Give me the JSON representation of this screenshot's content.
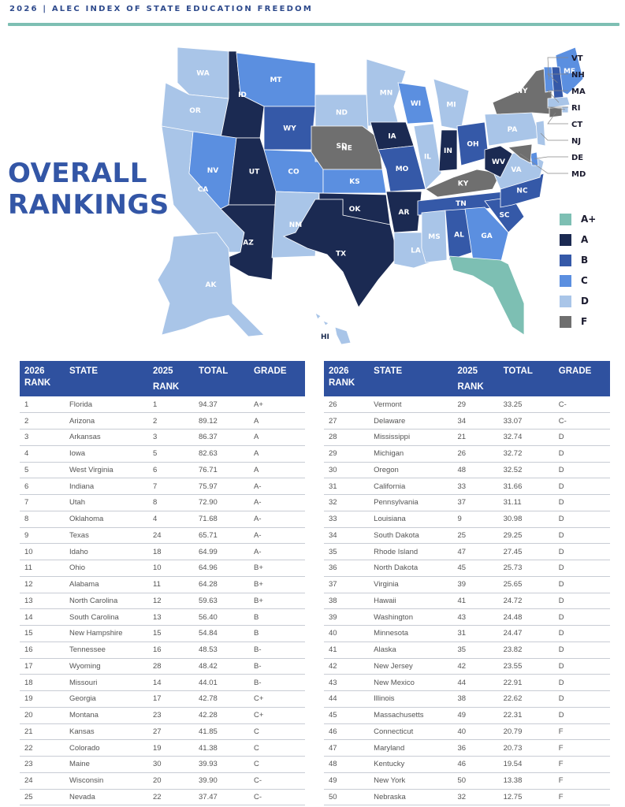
{
  "header": {
    "title": "2026 | ALEC INDEX OF STATE EDUCATION FREEDOM"
  },
  "page_title": {
    "line1": "OVERALL",
    "line2": "RANKINGS"
  },
  "colors": {
    "A+": "#7dbfb3",
    "A": "#1b2a52",
    "B": "#3559a8",
    "C": "#5b8fe0",
    "D": "#a9c5e8",
    "F": "#6f6f6f",
    "header_blue": "#2f519f",
    "accent_teal": "#7dbfb3"
  },
  "legend": [
    {
      "grade": "A+",
      "label": "A+"
    },
    {
      "grade": "A",
      "label": "A"
    },
    {
      "grade": "B",
      "label": "B"
    },
    {
      "grade": "C",
      "label": "C"
    },
    {
      "grade": "D",
      "label": "D"
    },
    {
      "grade": "F",
      "label": "F"
    }
  ],
  "map": {
    "states": {
      "WA": "D",
      "OR": "D",
      "CA": "D",
      "ID": "A",
      "NV": "C",
      "UT": "A",
      "AZ": "A",
      "MT": "C",
      "WY": "B",
      "CO": "C",
      "NM": "D",
      "ND": "D",
      "SD": "D",
      "NE": "F",
      "KS": "C",
      "OK": "A",
      "TX": "A",
      "MN": "D",
      "IA": "A",
      "MO": "B",
      "AR": "A",
      "LA": "D",
      "WI": "C",
      "IL": "D",
      "MI": "D",
      "IN": "A",
      "OH": "B",
      "KY": "F",
      "TN": "B",
      "MS": "D",
      "AL": "B",
      "GA": "C",
      "FL": "A+",
      "SC": "B",
      "NC": "B",
      "VA": "D",
      "WV": "A",
      "PA": "D",
      "NY": "F",
      "ME": "C",
      "VT": "C",
      "NH": "B",
      "MA": "D",
      "RI": "D",
      "CT": "F",
      "NJ": "D",
      "DE": "C",
      "MD": "F",
      "AK": "D",
      "HI": "D"
    },
    "callouts": [
      "VT",
      "NH",
      "MA",
      "RI",
      "CT",
      "NJ",
      "DE",
      "MD"
    ]
  },
  "table": {
    "headers": {
      "rank_2026_line1": "2026",
      "rank_2026_line2": "RANK",
      "state": "STATE",
      "rank_2025_line1": "2025",
      "rank_2025_line2": "RANK",
      "total": "TOTAL",
      "grade": "GRADE"
    },
    "rows": [
      {
        "rank": "1",
        "state": "Florida",
        "prev": "1",
        "total": "94.37",
        "grade": "A+"
      },
      {
        "rank": "2",
        "state": "Arizona",
        "prev": "2",
        "total": "89.12",
        "grade": "A"
      },
      {
        "rank": "3",
        "state": "Arkansas",
        "prev": "3",
        "total": "86.37",
        "grade": "A"
      },
      {
        "rank": "4",
        "state": "Iowa",
        "prev": "5",
        "total": "82.63",
        "grade": "A"
      },
      {
        "rank": "5",
        "state": "West Virginia",
        "prev": "6",
        "total": "76.71",
        "grade": "A"
      },
      {
        "rank": "6",
        "state": "Indiana",
        "prev": "7",
        "total": "75.97",
        "grade": "A-"
      },
      {
        "rank": "7",
        "state": "Utah",
        "prev": "8",
        "total": "72.90",
        "grade": "A-"
      },
      {
        "rank": "8",
        "state": "Oklahoma",
        "prev": "4",
        "total": "71.68",
        "grade": "A-"
      },
      {
        "rank": "9",
        "state": "Texas",
        "prev": "24",
        "total": "65.71",
        "grade": "A-"
      },
      {
        "rank": "10",
        "state": "Idaho",
        "prev": "18",
        "total": "64.99",
        "grade": "A-"
      },
      {
        "rank": "11",
        "state": "Ohio",
        "prev": "10",
        "total": "64.96",
        "grade": "B+"
      },
      {
        "rank": "12",
        "state": "Alabama",
        "prev": "11",
        "total": "64.28",
        "grade": "B+"
      },
      {
        "rank": "13",
        "state": "North Carolina",
        "prev": "12",
        "total": "59.63",
        "grade": "B+"
      },
      {
        "rank": "14",
        "state": "South Carolina",
        "prev": "13",
        "total": "56.40",
        "grade": "B"
      },
      {
        "rank": "15",
        "state": "New Hampshire",
        "prev": "15",
        "total": "54.84",
        "grade": "B"
      },
      {
        "rank": "16",
        "state": "Tennessee",
        "prev": "16",
        "total": "48.53",
        "grade": "B-"
      },
      {
        "rank": "17",
        "state": "Wyoming",
        "prev": "28",
        "total": "48.42",
        "grade": "B-"
      },
      {
        "rank": "18",
        "state": "Missouri",
        "prev": "14",
        "total": "44.01",
        "grade": "B-"
      },
      {
        "rank": "19",
        "state": "Georgia",
        "prev": "17",
        "total": "42.78",
        "grade": "C+"
      },
      {
        "rank": "20",
        "state": "Montana",
        "prev": "23",
        "total": "42.28",
        "grade": "C+"
      },
      {
        "rank": "21",
        "state": "Kansas",
        "prev": "27",
        "total": "41.85",
        "grade": "C"
      },
      {
        "rank": "22",
        "state": "Colorado",
        "prev": "19",
        "total": "41.38",
        "grade": "C"
      },
      {
        "rank": "23",
        "state": "Maine",
        "prev": "30",
        "total": "39.93",
        "grade": "C"
      },
      {
        "rank": "24",
        "state": "Wisconsin",
        "prev": "20",
        "total": "39.90",
        "grade": "C-"
      },
      {
        "rank": "25",
        "state": "Nevada",
        "prev": "22",
        "total": "37.47",
        "grade": "C-"
      },
      {
        "rank": "26",
        "state": "Vermont",
        "prev": "29",
        "total": "33.25",
        "grade": "C-"
      },
      {
        "rank": "27",
        "state": "Delaware",
        "prev": "34",
        "total": "33.07",
        "grade": "C-"
      },
      {
        "rank": "28",
        "state": "Mississippi",
        "prev": "21",
        "total": "32.74",
        "grade": "D"
      },
      {
        "rank": "29",
        "state": "Michigan",
        "prev": "26",
        "total": "32.72",
        "grade": "D"
      },
      {
        "rank": "30",
        "state": "Oregon",
        "prev": "48",
        "total": "32.52",
        "grade": "D"
      },
      {
        "rank": "31",
        "state": "California",
        "prev": "33",
        "total": "31.66",
        "grade": "D"
      },
      {
        "rank": "32",
        "state": "Pennsylvania",
        "prev": "37",
        "total": "31.11",
        "grade": "D"
      },
      {
        "rank": "33",
        "state": "Louisiana",
        "prev": "9",
        "total": "30.98",
        "grade": "D"
      },
      {
        "rank": "34",
        "state": "South Dakota",
        "prev": "25",
        "total": "29.25",
        "grade": "D"
      },
      {
        "rank": "35",
        "state": "Rhode Island",
        "prev": "47",
        "total": "27.45",
        "grade": "D"
      },
      {
        "rank": "36",
        "state": "North Dakota",
        "prev": "45",
        "total": "25.73",
        "grade": "D"
      },
      {
        "rank": "37",
        "state": "Virginia",
        "prev": "39",
        "total": "25.65",
        "grade": "D"
      },
      {
        "rank": "38",
        "state": "Hawaii",
        "prev": "41",
        "total": "24.72",
        "grade": "D"
      },
      {
        "rank": "39",
        "state": "Washington",
        "prev": "43",
        "total": "24.48",
        "grade": "D"
      },
      {
        "rank": "40",
        "state": "Minnesota",
        "prev": "31",
        "total": "24.47",
        "grade": "D"
      },
      {
        "rank": "41",
        "state": "Alaska",
        "prev": "35",
        "total": "23.82",
        "grade": "D"
      },
      {
        "rank": "42",
        "state": "New Jersey",
        "prev": "42",
        "total": "23.55",
        "grade": "D"
      },
      {
        "rank": "43",
        "state": "New Mexico",
        "prev": "44",
        "total": "22.91",
        "grade": "D"
      },
      {
        "rank": "44",
        "state": "Illinois",
        "prev": "38",
        "total": "22.62",
        "grade": "D"
      },
      {
        "rank": "45",
        "state": "Massachusetts",
        "prev": "49",
        "total": "22.31",
        "grade": "D"
      },
      {
        "rank": "46",
        "state": "Connecticut",
        "prev": "40",
        "total": "20.79",
        "grade": "F"
      },
      {
        "rank": "47",
        "state": "Maryland",
        "prev": "36",
        "total": "20.73",
        "grade": "F"
      },
      {
        "rank": "48",
        "state": "Kentucky",
        "prev": "46",
        "total": "19.54",
        "grade": "F"
      },
      {
        "rank": "49",
        "state": "New York",
        "prev": "50",
        "total": "13.38",
        "grade": "F"
      },
      {
        "rank": "50",
        "state": "Nebraska",
        "prev": "32",
        "total": "12.75",
        "grade": "F"
      }
    ]
  }
}
